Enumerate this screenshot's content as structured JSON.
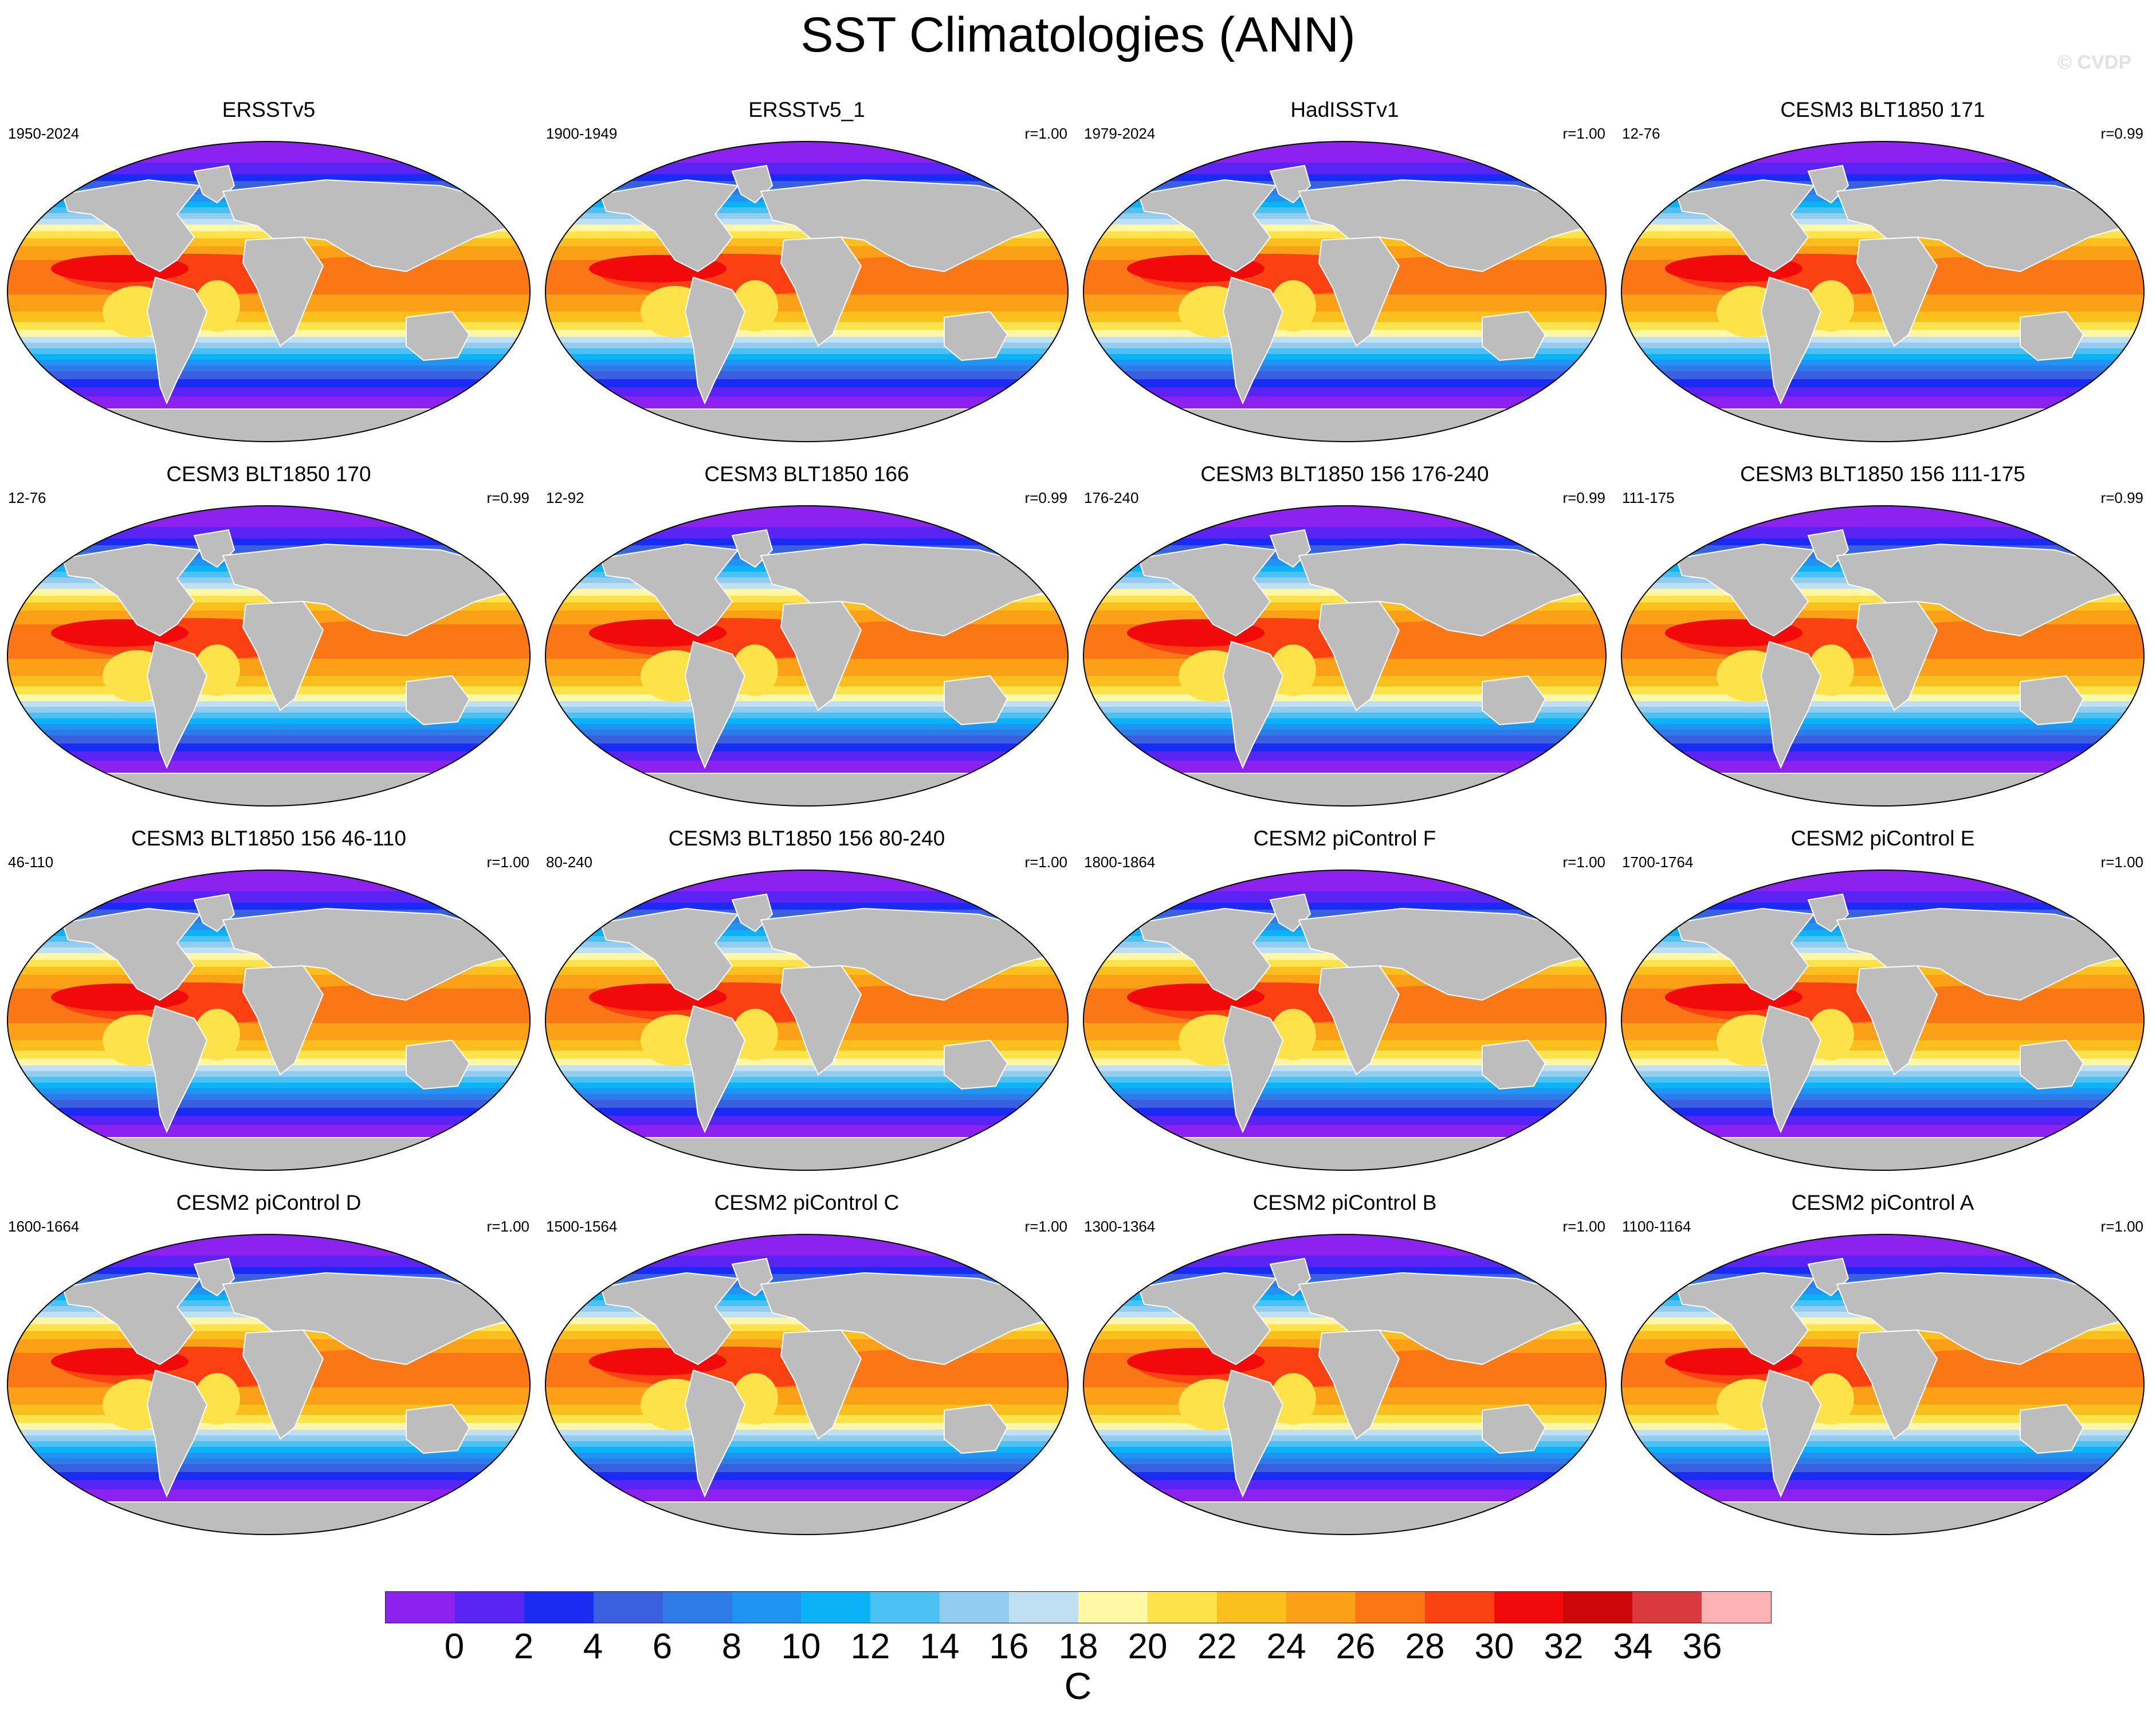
{
  "title": "SST Climatologies (ANN)",
  "watermark": "© CVDP",
  "colorbar": {
    "unit": "C",
    "ticks": [
      "0",
      "2",
      "4",
      "6",
      "8",
      "10",
      "12",
      "14",
      "16",
      "18",
      "20",
      "22",
      "24",
      "26",
      "28",
      "30",
      "32",
      "34",
      "36"
    ],
    "colors": [
      "#8c21f0",
      "#5a24f4",
      "#1a2cf3",
      "#3a60e0",
      "#2f7bea",
      "#2094f4",
      "#0ab2f6",
      "#4cc1f4",
      "#93ccee",
      "#bfdff3",
      "#fff6a6",
      "#fde24a",
      "#fbbf1d",
      "#fba017",
      "#fb7715",
      "#fb4011",
      "#f20909",
      "#cc0606",
      "#da3a3d",
      "#fcb2b2"
    ]
  },
  "land_color": "#bdbdbd",
  "panels": [
    {
      "title": "ERSSTv5",
      "years": "1950-2024",
      "corr": ""
    },
    {
      "title": "ERSSTv5_1",
      "years": "1900-1949",
      "corr": "r=1.00"
    },
    {
      "title": "HadISSTv1",
      "years": "1979-2024",
      "corr": "r=1.00"
    },
    {
      "title": "CESM3 BLT1850 171",
      "years": "12-76",
      "corr": "r=0.99"
    },
    {
      "title": "CESM3 BLT1850 170",
      "years": "12-76",
      "corr": "r=0.99"
    },
    {
      "title": "CESM3 BLT1850 166",
      "years": "12-92",
      "corr": "r=0.99"
    },
    {
      "title": "CESM3 BLT1850 156 176-240",
      "years": "176-240",
      "corr": "r=0.99"
    },
    {
      "title": "CESM3 BLT1850 156 111-175",
      "years": "111-175",
      "corr": "r=0.99"
    },
    {
      "title": "CESM3 BLT1850 156 46-110",
      "years": "46-110",
      "corr": "r=1.00"
    },
    {
      "title": "CESM3 BLT1850 156 80-240",
      "years": "80-240",
      "corr": "r=1.00"
    },
    {
      "title": "CESM2 piControl F",
      "years": "1800-1864",
      "corr": "r=1.00"
    },
    {
      "title": "CESM2 piControl E",
      "years": "1700-1764",
      "corr": "r=1.00"
    },
    {
      "title": "CESM2 piControl D",
      "years": "1600-1664",
      "corr": "r=1.00"
    },
    {
      "title": "CESM2 piControl C",
      "years": "1500-1564",
      "corr": "r=1.00"
    },
    {
      "title": "CESM2 piControl B",
      "years": "1300-1364",
      "corr": "r=1.00"
    },
    {
      "title": "CESM2 piControl A",
      "years": "1100-1164",
      "corr": "r=1.00"
    }
  ]
}
